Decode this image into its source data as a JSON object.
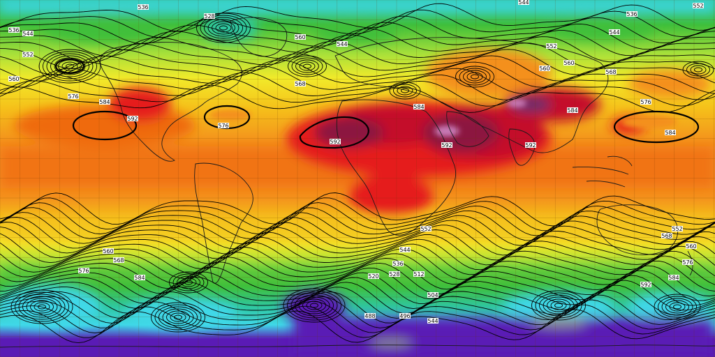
{
  "map": {
    "field_description": "",
    "palette": {
      "violet": "#5a1bb5",
      "blue": "#2f6fe0",
      "cyan": "#3fd8e8",
      "teal": "#2fc7a0",
      "green": "#3fbf3a",
      "lime": "#a7e03a",
      "yellow": "#f2ea2a",
      "gold": "#f5c21a",
      "orange": "#f4901c",
      "deep_orange": "#ef6a10",
      "red": "#e51d1d",
      "crimson": "#c4102c",
      "maroon": "#8c1240",
      "plum": "#6e2f6a",
      "pink": "#c77ab6",
      "contour": "#000000",
      "coastline": "#1a1a1a"
    },
    "contour_labels": [
      "536",
      "528",
      "536",
      "544",
      "552",
      "560",
      "576",
      "584",
      "592",
      "536",
      "544",
      "552",
      "560",
      "568",
      "576",
      "584",
      "592",
      "544",
      "560",
      "568",
      "576",
      "584",
      "592",
      "560",
      "584",
      "592",
      "544",
      "552",
      "560",
      "568",
      "576",
      "584",
      "552",
      "544",
      "536",
      "528",
      "520",
      "512",
      "504",
      "496",
      "488",
      "544",
      "552",
      "560",
      "568",
      "576",
      "584",
      "592"
    ]
  }
}
